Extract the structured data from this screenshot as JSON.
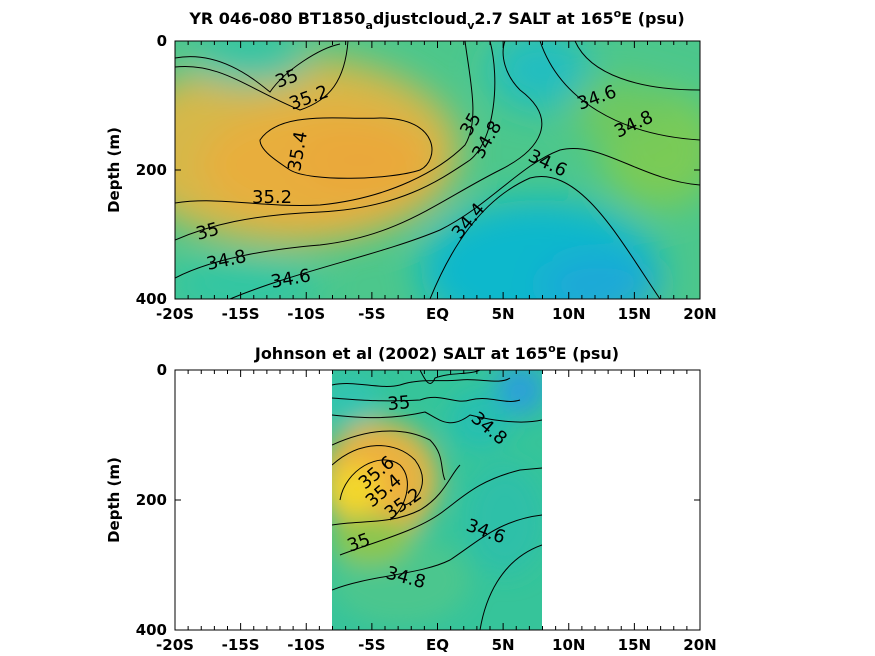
{
  "colors": {
    "axis": "#000000",
    "background": "#ffffff",
    "fresh": "#1aa0e0",
    "mid_low": "#14bfcf",
    "mid": "#29c3a0",
    "mid_high": "#7fcb57",
    "salty": "#e6b040",
    "saltiest": "#f5e020"
  },
  "chart_data": [
    {
      "type": "heatmap",
      "subtype": "filled-contour",
      "title_parts": {
        "prefix": "YR 046-080 BT1850",
        "sub1": "a",
        "mid": "djustcloud",
        "sub2": "v",
        "after": "2.7 SALT at 165",
        "sup": "o",
        "suffix": "E (psu)"
      },
      "xlabel": "",
      "ylabel": "Depth (m)",
      "xlim": [
        -20,
        20
      ],
      "ylim": [
        400,
        0
      ],
      "x_ticks": [
        "-20S",
        "-15S",
        "-10S",
        "-5S",
        "EQ",
        "5N",
        "10N",
        "15N",
        "20N"
      ],
      "y_ticks": [
        "0",
        "200",
        "400"
      ],
      "data_extent_x": [
        -20,
        20
      ],
      "contour_labels": [
        "35",
        "35.2",
        "35.4",
        "35.2",
        "35",
        "34.8",
        "34.6",
        "35",
        "34.8",
        "34.6",
        "34.4",
        "34.6",
        "34.8"
      ]
    },
    {
      "type": "heatmap",
      "subtype": "filled-contour",
      "title_parts": {
        "prefix": "Johnson et al (2002) SALT at 165",
        "sup": "o",
        "suffix": "E (psu)"
      },
      "xlabel": "",
      "ylabel": "Depth (m)",
      "xlim": [
        -20,
        20
      ],
      "ylim": [
        400,
        0
      ],
      "x_ticks": [
        "-20S",
        "-15S",
        "-10S",
        "-5S",
        "EQ",
        "5N",
        "10N",
        "15N",
        "20N"
      ],
      "y_ticks": [
        "0",
        "200",
        "400"
      ],
      "data_extent_x": [
        -8,
        8
      ],
      "contour_labels": [
        "35",
        "34.8",
        "35.6",
        "35.4",
        "35.2",
        "35",
        "34.6",
        "34.8"
      ]
    }
  ]
}
